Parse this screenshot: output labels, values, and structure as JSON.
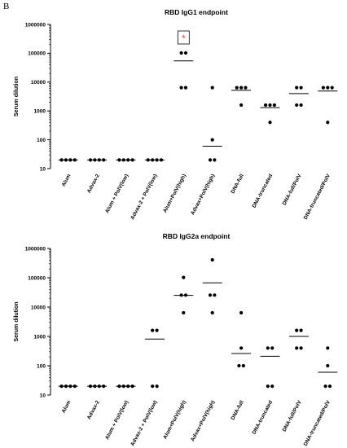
{
  "panel_letter": "B",
  "chart_data": [
    {
      "type": "scatter",
      "title": "RBD IgG1 endpoint",
      "ylabel": "Serum dilution",
      "xlabel": "",
      "yscale": "log",
      "ylim": [
        10,
        1000000
      ],
      "yticks": [
        "10",
        "100",
        "1000",
        "10000",
        "100000",
        "1000000"
      ],
      "categories": [
        "Alum",
        "Advax-2",
        "Alum + PolV(low)",
        "Advax-2 + PolV(low)",
        "Alum+PolV(high)",
        "Advax+PolV(high)",
        "DNA-full",
        "DNA-truncated",
        "DNA-full/PolV",
        "DNA-truncated/PolV"
      ],
      "points": [
        [
          20,
          20,
          20,
          20
        ],
        [
          20,
          20,
          20,
          20
        ],
        [
          20,
          20,
          20,
          20
        ],
        [
          20,
          20,
          20,
          20
        ],
        [
          102400,
          102400,
          6400,
          6400
        ],
        [
          6400,
          100,
          20,
          20
        ],
        [
          6400,
          6400,
          6400,
          1600
        ],
        [
          1600,
          1600,
          1600,
          400
        ],
        [
          6400,
          6400,
          1600,
          1600
        ],
        [
          6400,
          6400,
          6400,
          400
        ]
      ],
      "means": [
        20,
        20,
        20,
        20,
        54300,
        60,
        5200,
        1300,
        4000,
        4900
      ],
      "annotation": {
        "text": "*",
        "category_index": 4,
        "color": "#e8453c"
      }
    },
    {
      "type": "scatter",
      "title": "RBD IgG2a endpoint",
      "ylabel": "Serum dilution",
      "xlabel": "",
      "yscale": "log",
      "ylim": [
        10,
        1000000
      ],
      "yticks": [
        "10",
        "100",
        "1000",
        "10000",
        "100000",
        "1000000"
      ],
      "categories": [
        "Alum",
        "Advax-2",
        "Alum + PolV(low)",
        "Advax-2 + PolV(low)",
        "Alum+PolV(high)",
        "Advax+PolV(high)",
        "DNA-full",
        "DNA-truncated",
        "DNA-full/PolV",
        "DNA-truncated/PolV"
      ],
      "points": [
        [
          20,
          20,
          20,
          20
        ],
        [
          20,
          20,
          20,
          20
        ],
        [
          20,
          20,
          20,
          20
        ],
        [
          1600,
          1600,
          20,
          20
        ],
        [
          102400,
          25600,
          25600,
          6400
        ],
        [
          409600,
          25600,
          25600,
          6400
        ],
        [
          6400,
          400,
          100,
          100
        ],
        [
          400,
          400,
          20,
          20
        ],
        [
          1600,
          1600,
          400,
          400
        ],
        [
          400,
          100,
          20,
          20
        ]
      ],
      "means": [
        20,
        20,
        20,
        810,
        25000,
        67000,
        260,
        210,
        1000,
        60
      ]
    }
  ]
}
